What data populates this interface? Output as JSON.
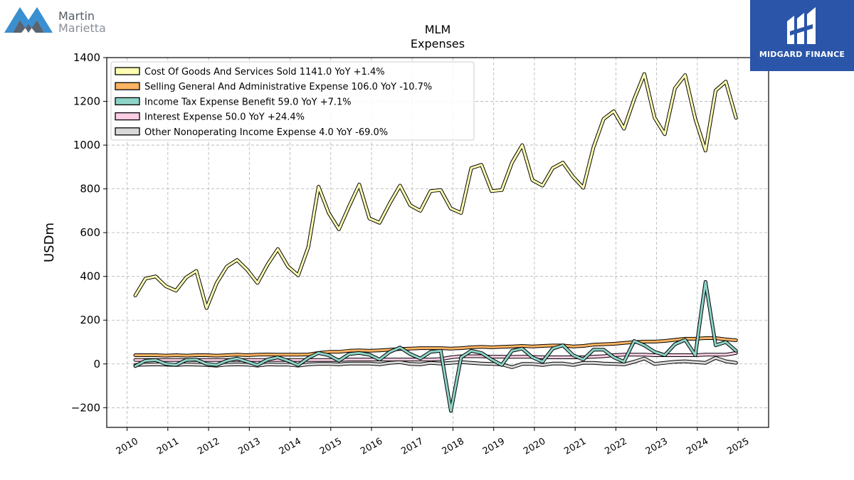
{
  "brand": {
    "left_logo_line1": "Martin",
    "left_logo_line2": "Marietta",
    "right_logo_text": "MIDGARD FINANCE"
  },
  "chart_data": {
    "type": "line",
    "title": "MLM",
    "subtitle": "Expenses",
    "ylabel": "USDm",
    "xlabel": "",
    "ylim": [
      -290,
      1400
    ],
    "xlim": [
      2009.5,
      2025.75
    ],
    "yticks": [
      -200,
      0,
      200,
      400,
      600,
      800,
      1000,
      1200,
      1400
    ],
    "ytick_labels": [
      "−200",
      "0",
      "200",
      "400",
      "600",
      "800",
      "1000",
      "1200",
      "1400"
    ],
    "xticks": [
      2010,
      2011,
      2012,
      2013,
      2014,
      2015,
      2016,
      2017,
      2018,
      2019,
      2020,
      2021,
      2022,
      2023,
      2024,
      2025
    ],
    "xtick_labels": [
      "2010",
      "2011",
      "2012",
      "2013",
      "2014",
      "2015",
      "2016",
      "2017",
      "2018",
      "2019",
      "2020",
      "2021",
      "2022",
      "2023",
      "2024",
      "2025"
    ],
    "grid": true,
    "legend_position": "top-left",
    "series": [
      {
        "name": "Cost Of Goods And Services Sold",
        "legend": "Cost Of Goods And Services Sold  1141.0 YoY +1.4%",
        "color": "#ffffb3",
        "x": [
          2010.2,
          2010.45,
          2010.7,
          2010.95,
          2011.2,
          2011.45,
          2011.7,
          2011.95,
          2012.2,
          2012.45,
          2012.7,
          2012.95,
          2013.2,
          2013.45,
          2013.7,
          2013.95,
          2014.2,
          2014.45,
          2014.7,
          2014.95,
          2015.2,
          2015.45,
          2015.7,
          2015.95,
          2016.2,
          2016.45,
          2016.7,
          2016.95,
          2017.2,
          2017.45,
          2017.7,
          2017.95,
          2018.2,
          2018.45,
          2018.7,
          2018.95,
          2019.2,
          2019.45,
          2019.7,
          2019.95,
          2020.2,
          2020.45,
          2020.7,
          2020.95,
          2021.2,
          2021.45,
          2021.7,
          2021.95,
          2022.2,
          2022.45,
          2022.7,
          2022.95,
          2023.2,
          2023.45,
          2023.7,
          2023.95,
          2024.2,
          2024.45,
          2024.7,
          2024.95
        ],
        "values": [
          313,
          390,
          400,
          355,
          335,
          395,
          425,
          255,
          370,
          445,
          475,
          430,
          370,
          455,
          525,
          445,
          405,
          535,
          810,
          690,
          615,
          720,
          820,
          665,
          645,
          735,
          815,
          725,
          700,
          790,
          795,
          710,
          690,
          895,
          910,
          790,
          795,
          920,
          1000,
          840,
          815,
          895,
          920,
          855,
          805,
          990,
          1120,
          1155,
          1075,
          1210,
          1325,
          1125,
          1050,
          1260,
          1320,
          1120,
          975,
          1250,
          1290,
          1125
        ]
      },
      {
        "name": "Selling General And Administrative Expense",
        "legend": "Selling General And Administrative Expense  106.0 YoY -10.7%",
        "color": "#fdb462",
        "x": [
          2010.2,
          2010.45,
          2010.7,
          2010.95,
          2011.2,
          2011.45,
          2011.7,
          2011.95,
          2012.2,
          2012.45,
          2012.7,
          2012.95,
          2013.2,
          2013.45,
          2013.7,
          2013.95,
          2014.2,
          2014.45,
          2014.7,
          2014.95,
          2015.2,
          2015.45,
          2015.7,
          2015.95,
          2016.2,
          2016.45,
          2016.7,
          2016.95,
          2017.2,
          2017.45,
          2017.7,
          2017.95,
          2018.2,
          2018.45,
          2018.7,
          2018.95,
          2019.2,
          2019.45,
          2019.7,
          2019.95,
          2020.2,
          2020.45,
          2020.7,
          2020.95,
          2021.2,
          2021.45,
          2021.7,
          2021.95,
          2022.2,
          2022.45,
          2022.7,
          2022.95,
          2023.2,
          2023.45,
          2023.7,
          2023.95,
          2024.2,
          2024.45,
          2024.7,
          2024.95
        ],
        "values": [
          40,
          40,
          40,
          38,
          40,
          38,
          40,
          40,
          38,
          40,
          42,
          40,
          42,
          43,
          42,
          42,
          42,
          43,
          50,
          55,
          55,
          60,
          62,
          60,
          62,
          65,
          68,
          70,
          72,
          72,
          72,
          70,
          72,
          76,
          78,
          76,
          78,
          80,
          82,
          80,
          82,
          84,
          84,
          80,
          82,
          88,
          90,
          92,
          96,
          100,
          102,
          102,
          105,
          110,
          115,
          115,
          118,
          118,
          112,
          108
        ]
      },
      {
        "name": "Income Tax Expense Benefit",
        "legend": "Income Tax Expense Benefit  59.0 YoY +7.1%",
        "color": "#8dd3c7",
        "x": [
          2010.2,
          2010.45,
          2010.7,
          2010.95,
          2011.2,
          2011.45,
          2011.7,
          2011.95,
          2012.2,
          2012.45,
          2012.7,
          2012.95,
          2013.2,
          2013.45,
          2013.7,
          2013.95,
          2014.2,
          2014.45,
          2014.7,
          2014.95,
          2015.2,
          2015.45,
          2015.7,
          2015.95,
          2016.2,
          2016.45,
          2016.7,
          2016.95,
          2017.2,
          2017.45,
          2017.7,
          2017.95,
          2018.2,
          2018.45,
          2018.7,
          2018.95,
          2019.2,
          2019.45,
          2019.7,
          2019.95,
          2020.2,
          2020.45,
          2020.7,
          2020.95,
          2021.2,
          2021.45,
          2021.7,
          2021.95,
          2022.2,
          2022.45,
          2022.7,
          2022.95,
          2023.2,
          2023.45,
          2023.7,
          2023.95,
          2024.2,
          2024.45,
          2024.7,
          2024.95
        ],
        "values": [
          -10,
          15,
          18,
          0,
          -5,
          18,
          20,
          0,
          -5,
          15,
          25,
          10,
          -5,
          20,
          30,
          15,
          -5,
          28,
          50,
          40,
          15,
          45,
          50,
          42,
          20,
          55,
          75,
          45,
          25,
          55,
          60,
          -215,
          30,
          60,
          50,
          20,
          -5,
          60,
          70,
          30,
          10,
          70,
          85,
          40,
          20,
          65,
          65,
          30,
          10,
          105,
          85,
          55,
          40,
          90,
          110,
          40,
          375,
          85,
          100,
          60
        ]
      },
      {
        "name": "Interest Expense",
        "legend": "Interest Expense  50.0 YoY +24.4%",
        "color": "#fccde5",
        "x": [
          2010.2,
          2010.45,
          2010.7,
          2010.95,
          2011.2,
          2011.45,
          2011.7,
          2011.95,
          2012.2,
          2012.45,
          2012.7,
          2012.95,
          2013.2,
          2013.45,
          2013.7,
          2013.95,
          2014.2,
          2014.45,
          2014.7,
          2014.95,
          2015.2,
          2015.45,
          2015.7,
          2015.95,
          2016.2,
          2016.45,
          2016.7,
          2016.95,
          2017.2,
          2017.45,
          2017.7,
          2017.95,
          2018.2,
          2018.45,
          2018.7,
          2018.95,
          2019.2,
          2019.45,
          2019.7,
          2019.95,
          2020.2,
          2020.45,
          2020.7,
          2020.95,
          2021.2,
          2021.45,
          2021.7,
          2021.95,
          2022.2,
          2022.45,
          2022.7,
          2022.95,
          2023.2,
          2023.45,
          2023.7,
          2023.95,
          2024.2,
          2024.45,
          2024.7,
          2024.95
        ],
        "values": [
          18,
          18,
          18,
          18,
          18,
          18,
          18,
          18,
          18,
          18,
          18,
          18,
          18,
          18,
          18,
          18,
          18,
          18,
          18,
          18,
          18,
          20,
          20,
          20,
          20,
          20,
          20,
          20,
          20,
          20,
          22,
          30,
          35,
          35,
          35,
          33,
          33,
          32,
          33,
          32,
          30,
          30,
          30,
          30,
          30,
          33,
          35,
          40,
          42,
          42,
          42,
          40,
          40,
          40,
          40,
          40,
          42,
          42,
          42,
          50
        ]
      },
      {
        "name": "Other Nonoperating Income Expense",
        "legend": "Other Nonoperating Income Expense  4.0 YoY -69.0%",
        "color": "#d9d9d9",
        "x": [
          2010.2,
          2010.45,
          2010.7,
          2010.95,
          2011.2,
          2011.45,
          2011.7,
          2011.95,
          2012.2,
          2012.45,
          2012.7,
          2012.95,
          2013.2,
          2013.45,
          2013.7,
          2013.95,
          2014.2,
          2014.45,
          2014.7,
          2014.95,
          2015.2,
          2015.45,
          2015.7,
          2015.95,
          2016.2,
          2016.45,
          2016.7,
          2016.95,
          2017.2,
          2017.45,
          2017.7,
          2017.95,
          2018.2,
          2018.45,
          2018.7,
          2018.95,
          2019.2,
          2019.45,
          2019.7,
          2019.95,
          2020.2,
          2020.45,
          2020.7,
          2020.95,
          2021.2,
          2021.45,
          2021.7,
          2021.95,
          2022.2,
          2022.45,
          2022.7,
          2022.95,
          2023.2,
          2023.45,
          2023.7,
          2023.95,
          2024.2,
          2024.45,
          2024.7,
          2024.95
        ],
        "values": [
          -5,
          -3,
          -2,
          -3,
          -5,
          -2,
          -3,
          -5,
          -8,
          -3,
          -2,
          -3,
          -8,
          -2,
          -3,
          -3,
          -8,
          -2,
          0,
          0,
          -2,
          2,
          2,
          2,
          -2,
          5,
          8,
          0,
          -2,
          5,
          2,
          5,
          8,
          5,
          2,
          0,
          -2,
          -15,
          0,
          0,
          -5,
          2,
          2,
          -5,
          5,
          5,
          2,
          0,
          -2,
          10,
          25,
          0,
          5,
          10,
          12,
          8,
          5,
          28,
          12,
          5
        ]
      }
    ]
  }
}
